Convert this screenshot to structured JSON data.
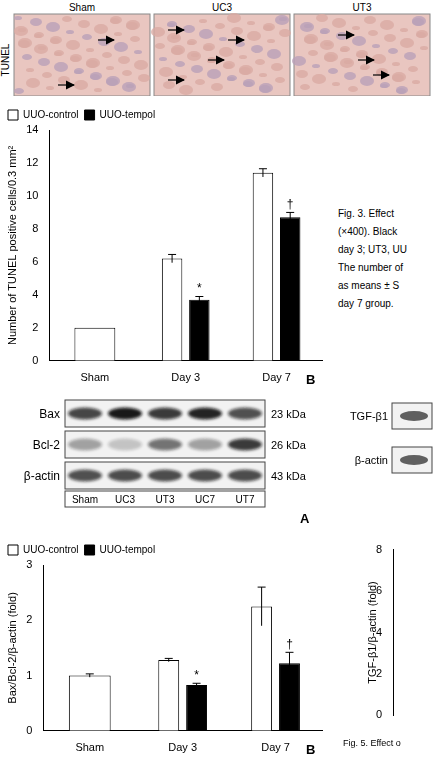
{
  "micrographs": {
    "side_label": "TUNEL",
    "labels": [
      "Sham",
      "UC3",
      "UT3"
    ]
  },
  "captions": {
    "fig3": [
      "Fig. 3. Effect",
      "(×400). Black",
      "day 3; UT3, UU",
      "The number of",
      "as means ± S",
      "day 7 group."
    ],
    "fig5": "Fig. 5. Effect o"
  },
  "blot_a": {
    "panel": "A",
    "rows": [
      {
        "name": "Bax",
        "size": "23 kDa"
      },
      {
        "name": "Bcl-2",
        "size": "26 kDa"
      },
      {
        "name": "β-actin",
        "size": "43 kDa"
      }
    ],
    "lanes": [
      "Sham",
      "UC3",
      "UT3",
      "UC7",
      "UT7"
    ]
  },
  "blot_tgf": {
    "rows": [
      "TGF-β1",
      "β-actin"
    ]
  },
  "chart_data": [
    {
      "type": "bar",
      "panel": "B",
      "y_label": "Number of TUNEL positive cells/0.3 mm²",
      "categories": [
        "Sham",
        "Day 3",
        "Day 7"
      ],
      "series": [
        {
          "name": "UUO-control",
          "color": "#ffffff",
          "values": [
            2,
            6.2,
            11.4
          ],
          "errors": [
            null,
            0.25,
            0.25
          ],
          "annotations": [
            null,
            null,
            null
          ]
        },
        {
          "name": "UUO-tempol",
          "color": "#000000",
          "values": [
            null,
            3.7,
            8.7
          ],
          "errors": [
            null,
            0.2,
            0.3
          ],
          "annotations": [
            null,
            "*",
            "†"
          ]
        }
      ],
      "ylim": [
        0,
        14
      ],
      "yticks": [
        0,
        2,
        4,
        6,
        8,
        10,
        12,
        14
      ],
      "grid": false,
      "legend": "top left"
    },
    {
      "type": "bar",
      "panel": "B",
      "y_label": "Bax/Bcl-2/β-actin (fold)",
      "categories": [
        "Sham",
        "Day 3",
        "Day 7"
      ],
      "series": [
        {
          "name": "UUO-control",
          "color": "#ffffff",
          "values": [
            1.0,
            1.28,
            2.25
          ],
          "errors": [
            0.03,
            0.03,
            0.35
          ],
          "annotations": [
            null,
            null,
            null
          ]
        },
        {
          "name": "UUO-tempol",
          "color": "#000000",
          "values": [
            null,
            0.83,
            1.22
          ],
          "errors": [
            null,
            0.03,
            0.2
          ],
          "annotations": [
            null,
            "*",
            "†"
          ]
        }
      ],
      "ylim": [
        0,
        3
      ],
      "yticks": [
        0,
        1,
        2,
        3
      ],
      "grid": false,
      "legend": "top left"
    },
    {
      "type": "bar",
      "y_label": "TGF-β1/β-actin (fold)",
      "ylim": [
        0,
        8
      ],
      "yticks": [
        0,
        2,
        4,
        6,
        8
      ],
      "grid": false,
      "tick_labels": "y"
    }
  ]
}
